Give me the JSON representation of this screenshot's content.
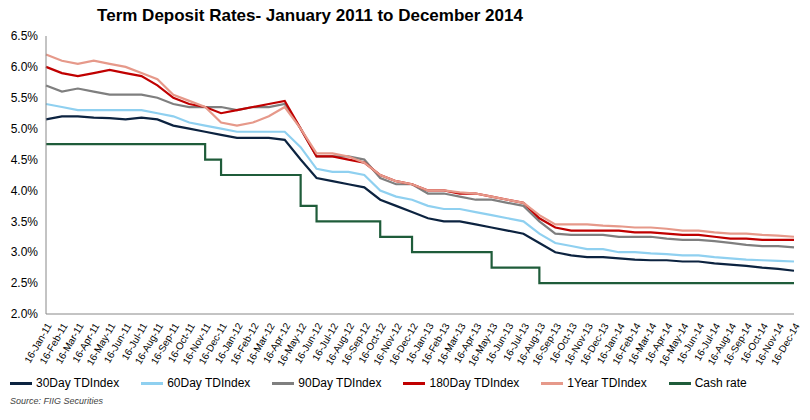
{
  "chart_data": {
    "type": "line",
    "title": "Term Deposit Rates- January 2011 to December 2014",
    "annotations": [
      "Source: FIIG Securities"
    ],
    "categories": [
      "16-Jan-11",
      "16-Feb-11",
      "16-Mar-11",
      "16-Apr-11",
      "16-May-11",
      "16-Jun-11",
      "16-Jul-11",
      "16-Aug-11",
      "16-Sep-11",
      "16-Oct-11",
      "16-Nov-11",
      "16-Dec-11",
      "16-Jan-12",
      "16-Feb-12",
      "16-Mar-12",
      "16-Apr-12",
      "16-May-12",
      "16-Jun-12",
      "16-Jul-12",
      "16-Aug-12",
      "16-Sep-12",
      "16-Oct-12",
      "16-Nov-12",
      "16-Dec-12",
      "16-Jan-13",
      "16-Feb-13",
      "16-Mar-13",
      "16-Apr-13",
      "16-May-13",
      "16-Jun-13",
      "16-Jul-13",
      "16-Aug-13",
      "16-Sep-13",
      "16-Oct-13",
      "16-Nov-13",
      "16-Dec-13",
      "16-Jan-14",
      "16-Feb-14",
      "16-Mar-14",
      "16-Apr-14",
      "16-May-14",
      "16-Jun-14",
      "16-Jul-14",
      "16-Aug-14",
      "16-Sep-14",
      "16-Oct-14",
      "16-Nov-14",
      "16-Dec-14"
    ],
    "series": [
      {
        "name": "30Day TDIndex",
        "color": "#0c2340",
        "line_style": "solid",
        "values": [
          5.15,
          5.2,
          5.2,
          5.18,
          5.17,
          5.15,
          5.18,
          5.15,
          5.05,
          5.0,
          4.95,
          4.9,
          4.85,
          4.85,
          4.85,
          4.82,
          4.5,
          4.2,
          4.15,
          4.1,
          4.05,
          3.85,
          3.75,
          3.65,
          3.55,
          3.5,
          3.5,
          3.45,
          3.4,
          3.35,
          3.3,
          3.15,
          3.0,
          2.95,
          2.92,
          2.92,
          2.9,
          2.88,
          2.87,
          2.87,
          2.85,
          2.85,
          2.82,
          2.8,
          2.78,
          2.75,
          2.73,
          2.7
        ]
      },
      {
        "name": "60Day TDIndex",
        "color": "#8fd0f0",
        "line_style": "solid",
        "values": [
          5.4,
          5.35,
          5.3,
          5.3,
          5.3,
          5.3,
          5.3,
          5.25,
          5.2,
          5.1,
          5.05,
          5.0,
          4.95,
          4.95,
          4.95,
          4.95,
          4.7,
          4.35,
          4.3,
          4.3,
          4.25,
          4.0,
          3.9,
          3.85,
          3.75,
          3.7,
          3.7,
          3.65,
          3.6,
          3.55,
          3.5,
          3.3,
          3.15,
          3.1,
          3.05,
          3.05,
          3.0,
          3.0,
          2.98,
          2.97,
          2.95,
          2.95,
          2.92,
          2.9,
          2.88,
          2.87,
          2.86,
          2.85
        ]
      },
      {
        "name": "90Day TDIndex",
        "color": "#7f7f7f",
        "line_style": "solid",
        "values": [
          5.7,
          5.6,
          5.65,
          5.6,
          5.55,
          5.55,
          5.55,
          5.5,
          5.4,
          5.35,
          5.35,
          5.35,
          5.3,
          5.35,
          5.35,
          5.4,
          5.0,
          4.55,
          4.55,
          4.55,
          4.5,
          4.2,
          4.1,
          4.1,
          3.95,
          3.95,
          3.9,
          3.85,
          3.85,
          3.8,
          3.75,
          3.5,
          3.3,
          3.28,
          3.28,
          3.28,
          3.25,
          3.25,
          3.25,
          3.22,
          3.2,
          3.2,
          3.18,
          3.15,
          3.12,
          3.1,
          3.1,
          3.08
        ]
      },
      {
        "name": "180Day TDIndex",
        "color": "#c00000",
        "line_style": "solid",
        "values": [
          6.0,
          5.9,
          5.85,
          5.9,
          5.95,
          5.9,
          5.85,
          5.7,
          5.5,
          5.4,
          5.35,
          5.25,
          5.3,
          5.35,
          5.4,
          5.45,
          5.0,
          4.55,
          4.55,
          4.5,
          4.45,
          4.25,
          4.15,
          4.1,
          4.0,
          4.0,
          3.95,
          3.95,
          3.9,
          3.85,
          3.8,
          3.55,
          3.4,
          3.35,
          3.35,
          3.35,
          3.35,
          3.32,
          3.32,
          3.3,
          3.28,
          3.28,
          3.25,
          3.22,
          3.22,
          3.2,
          3.2,
          3.2
        ]
      },
      {
        "name": "1Year TDIndex",
        "color": "#e6998a",
        "line_style": "solid",
        "values": [
          6.2,
          6.1,
          6.05,
          6.1,
          6.05,
          6.0,
          5.9,
          5.8,
          5.55,
          5.45,
          5.35,
          5.1,
          5.05,
          5.1,
          5.2,
          5.35,
          5.0,
          4.6,
          4.6,
          4.55,
          4.45,
          4.25,
          4.15,
          4.1,
          4.0,
          4.0,
          3.97,
          3.95,
          3.9,
          3.85,
          3.8,
          3.6,
          3.45,
          3.45,
          3.45,
          3.43,
          3.42,
          3.4,
          3.4,
          3.38,
          3.35,
          3.35,
          3.32,
          3.3,
          3.3,
          3.28,
          3.27,
          3.25
        ]
      },
      {
        "name": "Cash rate",
        "color": "#1f5c3a",
        "line_style": "step",
        "values": [
          4.75,
          4.75,
          4.75,
          4.75,
          4.75,
          4.75,
          4.75,
          4.75,
          4.75,
          4.75,
          4.5,
          4.25,
          4.25,
          4.25,
          4.25,
          4.25,
          3.75,
          3.5,
          3.5,
          3.5,
          3.5,
          3.25,
          3.25,
          3.0,
          3.0,
          3.0,
          3.0,
          3.0,
          2.75,
          2.75,
          2.75,
          2.5,
          2.5,
          2.5,
          2.5,
          2.5,
          2.5,
          2.5,
          2.5,
          2.5,
          2.5,
          2.5,
          2.5,
          2.5,
          2.5,
          2.5,
          2.5,
          2.5
        ]
      }
    ],
    "ylim": [
      2.0,
      6.5
    ],
    "yticks": [
      {
        "value": 2.0,
        "label": "2.0%"
      },
      {
        "value": 2.5,
        "label": "2.5%"
      },
      {
        "value": 3.0,
        "label": "3.0%"
      },
      {
        "value": 3.5,
        "label": "3.5%"
      },
      {
        "value": 4.0,
        "label": "4.0%"
      },
      {
        "value": 4.5,
        "label": "4.5%"
      },
      {
        "value": 5.0,
        "label": "5.0%"
      },
      {
        "value": 5.5,
        "label": "5.5%"
      },
      {
        "value": 6.0,
        "label": "6.0%"
      },
      {
        "value": 6.5,
        "label": "6.5%"
      }
    ],
    "grid": false,
    "legend": "bottom"
  }
}
